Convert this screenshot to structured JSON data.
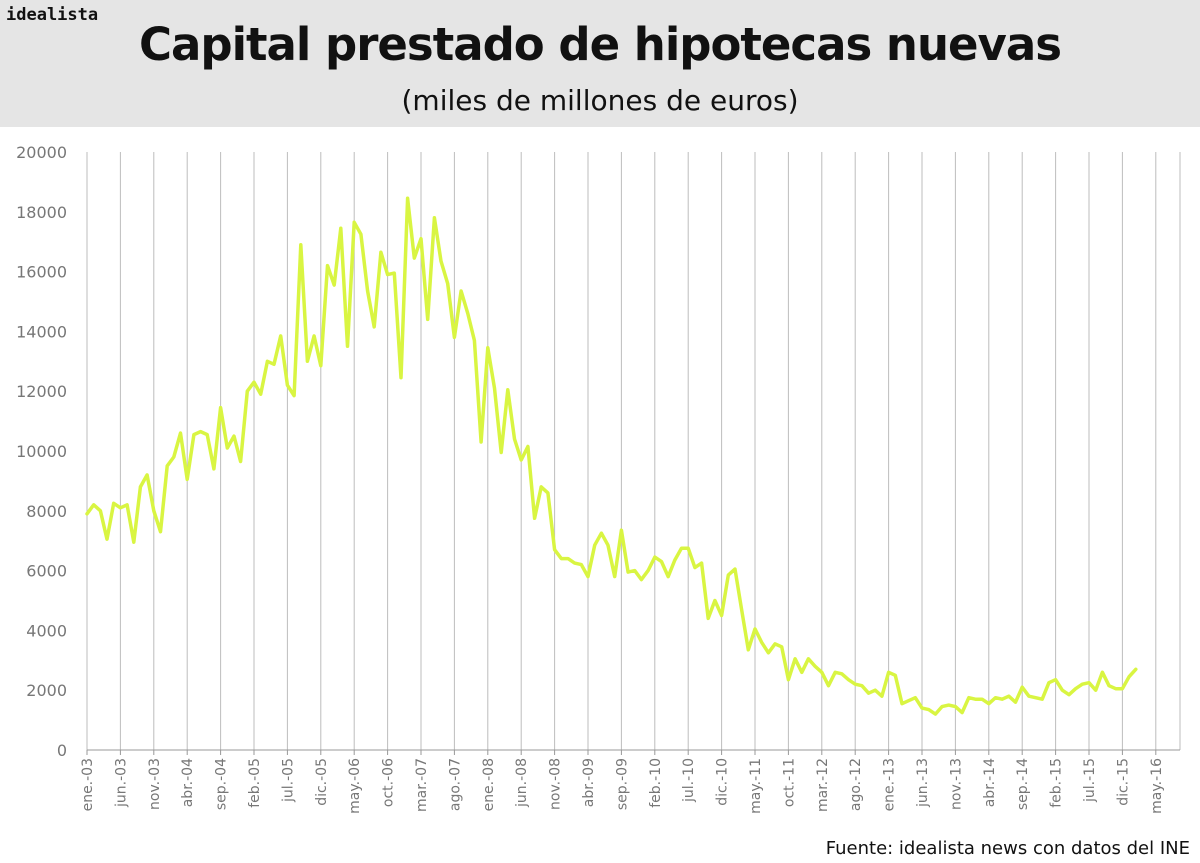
{
  "brand": "idealista",
  "source": "Fuente: idealista news con datos del INE",
  "chart_data": {
    "type": "line",
    "title": "Capital prestado de hipotecas nuevas",
    "subtitle": "(miles de millones de euros)",
    "xlabel": "",
    "ylabel": "",
    "ylim": [
      0,
      20000
    ],
    "yticks": [
      0,
      2000,
      4000,
      6000,
      8000,
      10000,
      12000,
      14000,
      16000,
      18000,
      20000
    ],
    "xticks": [
      "ene.-03",
      "jun.-03",
      "nov.-03",
      "abr.-04",
      "sep.-04",
      "feb.-05",
      "jul.-05",
      "dic.-05",
      "may.-06",
      "oct.-06",
      "mar.-07",
      "ago.-07",
      "ene.-08",
      "jun.-08",
      "nov.-08",
      "abr.-09",
      "sep.-09",
      "feb.-10",
      "jul.-10",
      "dic.-10",
      "may.-11",
      "oct.-11",
      "mar.-12",
      "ago.-12",
      "ene.-13",
      "jun.-13",
      "nov.-13",
      "abr.-14",
      "sep.-14",
      "feb.-15",
      "jul.-15",
      "dic.-15",
      "may.-16"
    ],
    "grid": "vertical",
    "line_color": "#d9f542",
    "series": [
      {
        "values": [
          7900,
          8200,
          8000,
          7050,
          8250,
          8100,
          8200,
          6950,
          8800,
          9200,
          8000,
          7300,
          9500,
          9800,
          10600,
          9050,
          10550,
          10650,
          10550,
          9400,
          11450,
          10100,
          10500,
          9650,
          12000,
          12300,
          11900,
          13000,
          12900,
          13850,
          12200,
          11850,
          16900,
          13000,
          13850,
          12850,
          16200,
          15550,
          17450,
          13500,
          17650,
          17250,
          15350,
          14150,
          16650,
          15900,
          15950,
          12450,
          18450,
          16450,
          17100,
          14400,
          17800,
          16350,
          15600,
          13800,
          15350,
          14600,
          13700,
          10300,
          13450,
          12100,
          9950,
          12050,
          10400,
          9700,
          10150,
          7750,
          8800,
          8600,
          6700,
          6400,
          6400,
          6250,
          6200,
          5800,
          6850,
          7250,
          6850,
          5800,
          7350,
          5950,
          6000,
          5700,
          6000,
          6450,
          6300,
          5800,
          6350,
          6750,
          6750,
          6100,
          6250,
          4400,
          5000,
          4500,
          5850,
          6050,
          4700,
          3350,
          4050,
          3600,
          3250,
          3550,
          3450,
          2350,
          3050,
          2600,
          3050,
          2800,
          2600,
          2150,
          2600,
          2550,
          2350,
          2200,
          2150,
          1900,
          2000,
          1800,
          2600,
          2500,
          1550,
          1650,
          1750,
          1400,
          1350,
          1200,
          1450,
          1500,
          1450,
          1250,
          1750,
          1700,
          1700,
          1550,
          1750,
          1700,
          1800,
          1600,
          2100,
          1800,
          1750,
          1700,
          2250,
          2350,
          2000,
          1850,
          2050,
          2200,
          2250,
          2000,
          2600,
          2150,
          2050,
          2050,
          2450,
          2700
        ]
      }
    ]
  }
}
